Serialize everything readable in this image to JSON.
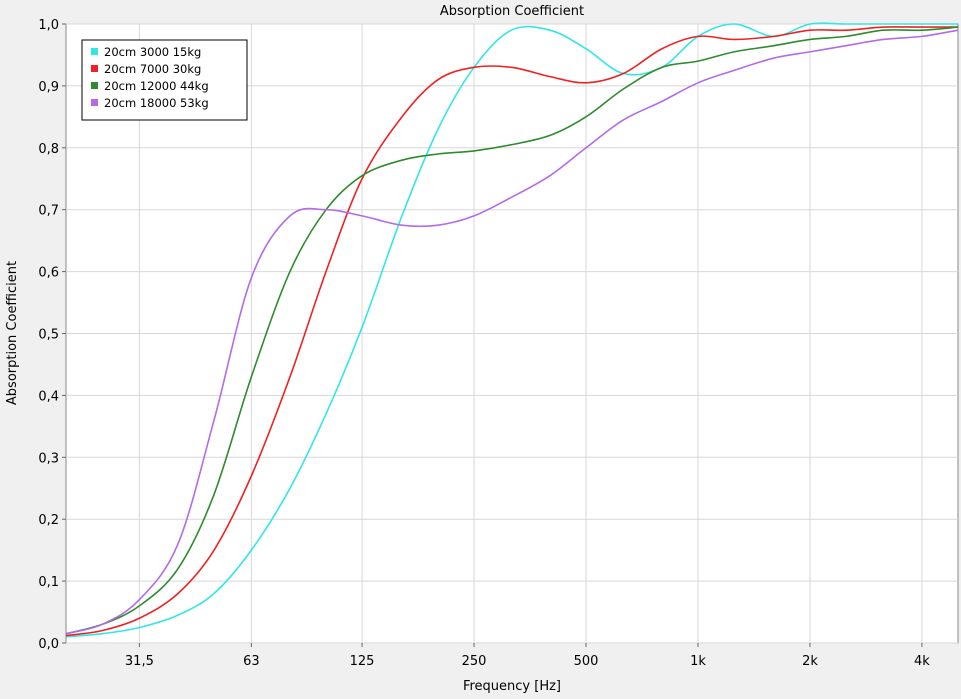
{
  "chart_data": {
    "type": "line",
    "title": "Absorption Coefficient",
    "x_label": "Frequency [Hz]",
    "y_label": "Absorption Coefficient",
    "x_scale": "log",
    "grid": true,
    "legend": "top-left",
    "x": [
      20,
      25,
      31.5,
      40,
      50,
      63,
      80,
      100,
      125,
      160,
      200,
      250,
      315,
      400,
      500,
      630,
      800,
      1000,
      1250,
      1600,
      2000,
      2500,
      3150,
      4000,
      5000
    ],
    "xlim": [
      20,
      5000
    ],
    "xticks": [
      {
        "value": 31.5,
        "label": "31,5"
      },
      63,
      125,
      250,
      500,
      {
        "value": 1000,
        "label": "1k"
      },
      {
        "value": 2000,
        "label": "2k"
      },
      {
        "value": 4000,
        "label": "4k"
      }
    ],
    "ylim": [
      0,
      1
    ],
    "yticks": [
      {
        "value": 0,
        "label": "0,0"
      },
      {
        "value": 0.1,
        "label": "0,1"
      },
      {
        "value": 0.2,
        "label": "0,2"
      },
      {
        "value": 0.3,
        "label": "0,3"
      },
      {
        "value": 0.4,
        "label": "0,4"
      },
      {
        "value": 0.5,
        "label": "0,5"
      },
      {
        "value": 0.6,
        "label": "0,6"
      },
      {
        "value": 0.7,
        "label": "0,7"
      },
      {
        "value": 0.8,
        "label": "0,8"
      },
      {
        "value": 0.9,
        "label": "0,9"
      },
      {
        "value": 1,
        "label": "1,0"
      }
    ],
    "series": [
      {
        "name": "20cm 3000 15kg",
        "color": "#33e6e6",
        "values": [
          0.01,
          0.015,
          0.025,
          0.045,
          0.08,
          0.15,
          0.25,
          0.37,
          0.51,
          0.69,
          0.83,
          0.93,
          0.99,
          0.99,
          0.96,
          0.92,
          0.93,
          0.98,
          1.0,
          0.98,
          1.0,
          1.0,
          1.0,
          1.0,
          1.0
        ]
      },
      {
        "name": "20cm 7000 30kg",
        "color": "#ee2222",
        "values": [
          0.012,
          0.02,
          0.04,
          0.08,
          0.15,
          0.27,
          0.43,
          0.6,
          0.75,
          0.85,
          0.91,
          0.93,
          0.93,
          0.915,
          0.905,
          0.92,
          0.96,
          0.98,
          0.975,
          0.98,
          0.99,
          0.99,
          0.995,
          0.995,
          0.995
        ]
      },
      {
        "name": "20cm 12000 44kg",
        "color": "#2e8b2e",
        "values": [
          0.015,
          0.03,
          0.06,
          0.12,
          0.24,
          0.43,
          0.6,
          0.7,
          0.755,
          0.78,
          0.79,
          0.795,
          0.805,
          0.82,
          0.85,
          0.895,
          0.93,
          0.94,
          0.955,
          0.965,
          0.975,
          0.98,
          0.99,
          0.99,
          0.995
        ]
      },
      {
        "name": "20cm 18000 53kg",
        "color": "#b36be6",
        "values": [
          0.015,
          0.03,
          0.07,
          0.16,
          0.36,
          0.59,
          0.69,
          0.7,
          0.69,
          0.675,
          0.675,
          0.69,
          0.72,
          0.755,
          0.8,
          0.845,
          0.875,
          0.905,
          0.925,
          0.945,
          0.955,
          0.965,
          0.975,
          0.98,
          0.99
        ]
      }
    ]
  }
}
